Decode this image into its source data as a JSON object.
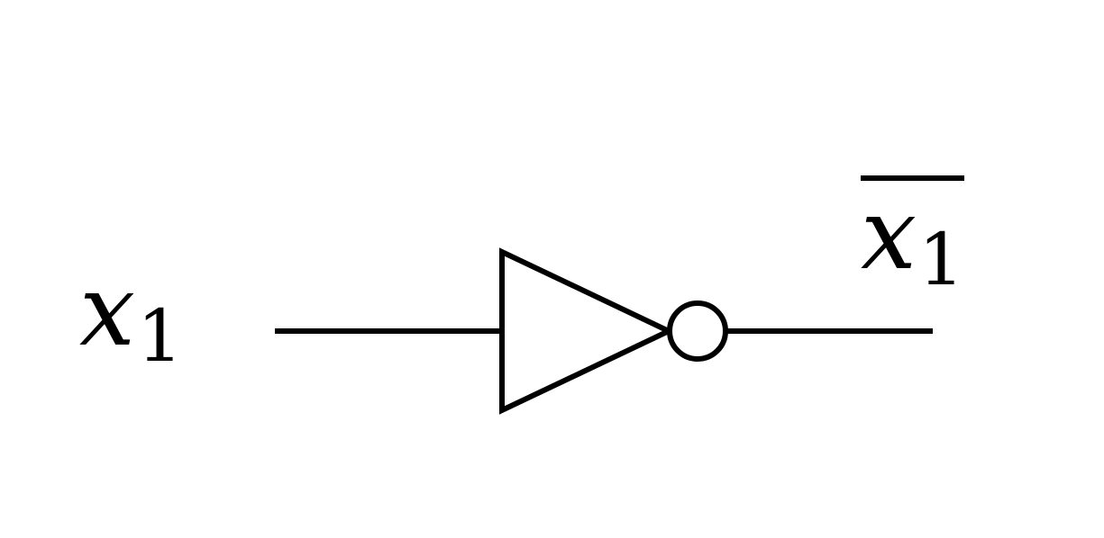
{
  "diagram": {
    "input": {
      "variable": "x",
      "subscript": "1"
    },
    "output": {
      "variable": "x",
      "subscript": "1",
      "overline": true
    },
    "stroke_color": "#000000",
    "background": "#ffffff"
  }
}
